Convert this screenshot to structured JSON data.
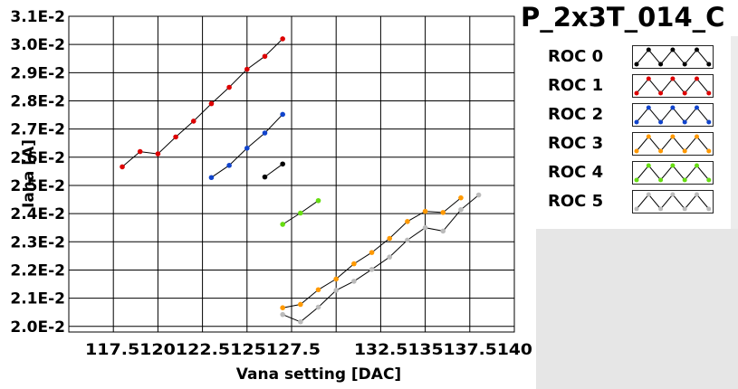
{
  "title": "P_2x3T_014_C",
  "chart_data": {
    "type": "scatter",
    "xlabel": "Vana setting [DAC]",
    "ylabel": "Iana [A]",
    "xlim": [
      115,
      140
    ],
    "ylim": [
      0.0198,
      0.031
    ],
    "x_ticks": [
      117.5,
      120,
      122.5,
      125,
      127.5,
      132.5,
      135,
      137.5,
      140
    ],
    "x_tick_labels": [
      "117.5",
      "120",
      "122.5",
      "125",
      "127.5",
      "132.5",
      "135",
      "137.5",
      "140"
    ],
    "x_tick_label_text": "117.5120122.5125127.5",
    "x_tick_label_text_2": "132.5135137.5140",
    "x_grid": [
      115,
      117.5,
      120,
      122.5,
      125,
      127.5,
      130,
      132.5,
      135,
      137.5,
      140
    ],
    "y_ticks": [
      0.02,
      0.021,
      0.022,
      0.023,
      0.024,
      0.025,
      0.026,
      0.027,
      0.028,
      0.029,
      0.03,
      0.031
    ],
    "y_tick_labels": [
      "2.0E-2",
      "2.1E-2",
      "2.2E-2",
      "2.3E-2",
      "2.4E-2",
      "2.5E-2",
      "2.6E-2",
      "2.7E-2",
      "2.8E-2",
      "2.9E-2",
      "3.0E-2",
      "3.1E-2"
    ],
    "grid": true,
    "legend_position": "right",
    "series": [
      {
        "name": "ROC 0",
        "color": "#000000",
        "x": [
          126,
          127
        ],
        "y": [
          0.0253,
          0.02576
        ]
      },
      {
        "name": "ROC 1",
        "color": "#dd0000",
        "x": [
          118,
          119,
          120,
          121,
          122,
          123,
          124,
          125,
          126,
          127
        ],
        "y": [
          0.02566,
          0.0262,
          0.02612,
          0.02672,
          0.02728,
          0.0279,
          0.02848,
          0.02912,
          0.02958,
          0.0302
        ]
      },
      {
        "name": "ROC 2",
        "color": "#1144cc",
        "x": [
          123,
          124,
          125,
          126,
          127
        ],
        "y": [
          0.02528,
          0.02571,
          0.02632,
          0.02686,
          0.02752
        ]
      },
      {
        "name": "ROC 3",
        "color": "#ff9900",
        "x": [
          127,
          128,
          129,
          130,
          131,
          132,
          133,
          134,
          135,
          136,
          137
        ],
        "y": [
          0.02066,
          0.02078,
          0.0213,
          0.02168,
          0.02222,
          0.02262,
          0.02312,
          0.02372,
          0.02408,
          0.02404,
          0.02456
        ]
      },
      {
        "name": "ROC 4",
        "color": "#66dd11",
        "x": [
          127,
          128,
          129
        ],
        "y": [
          0.02362,
          0.02402,
          0.02446
        ]
      },
      {
        "name": "ROC 5",
        "color": "#bbbbbb",
        "x": [
          127,
          128,
          129,
          130,
          131,
          132,
          133,
          134,
          135,
          136,
          137,
          138
        ],
        "y": [
          0.02042,
          0.02016,
          0.02068,
          0.02128,
          0.0216,
          0.02202,
          0.02246,
          0.02306,
          0.0235,
          0.02338,
          0.02414,
          0.02466
        ]
      }
    ]
  }
}
